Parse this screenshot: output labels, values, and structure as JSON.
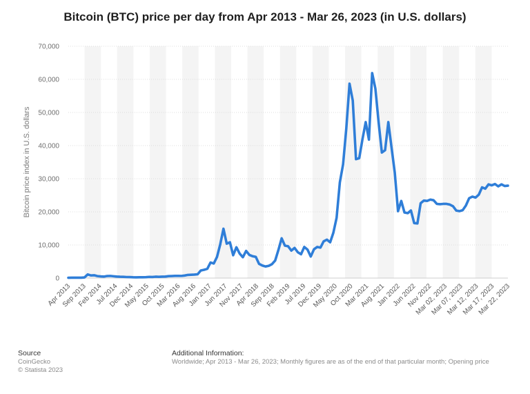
{
  "chart_data": {
    "type": "line",
    "title": "Bitcoin (BTC) price per day from Apr 2013 - Mar 26, 2023 (in U.S. dollars)",
    "xlabel": "",
    "ylabel": "Bitcoin price index in U.S. dollars",
    "ylim": [
      0,
      70000
    ],
    "yticks": [
      0,
      10000,
      20000,
      30000,
      40000,
      50000,
      60000,
      70000
    ],
    "ytick_labels": [
      "0",
      "10,000",
      "20,000",
      "30,000",
      "40,000",
      "50,000",
      "60,000",
      "70,000"
    ],
    "grid": true,
    "x_tick_labels": [
      "Apr 2013",
      "Sep 2013",
      "Feb 2014",
      "Jul 2014",
      "Dec 2014",
      "May 2015",
      "Oct 2015",
      "Mar 2016",
      "Aug 2016",
      "Jan 2017",
      "Jun 2017",
      "Nov 2017",
      "Apr 2018",
      "Sep 2018",
      "Feb 2019",
      "Jul 2019",
      "Dec 2019",
      "May 2020",
      "Oct 2020",
      "Mar 2021",
      "Aug 2021",
      "Jan 2022",
      "Jun 2022",
      "Nov 2022",
      "Mar 02, 2023",
      "Mar 07, 2023",
      "Mar 12, 2023",
      "Mar 17, 2023",
      "Mar 22, 2023"
    ],
    "color": "#2f7ed8",
    "values": [
      100,
      120,
      110,
      130,
      120,
      200,
      1100,
      800,
      850,
      600,
      500,
      450,
      620,
      650,
      550,
      450,
      400,
      380,
      310,
      300,
      240,
      230,
      240,
      250,
      270,
      360,
      320,
      420,
      380,
      420,
      450,
      580,
      620,
      660,
      680,
      650,
      770,
      960,
      1000,
      1050,
      1150,
      2300,
      2500,
      2800,
      4700,
      4400,
      6400,
      10200,
      14900,
      10400,
      10800,
      6900,
      9300,
      7400,
      6300,
      8200,
      7000,
      6600,
      6400,
      4300,
      3800,
      3500,
      3700,
      4200,
      5300,
      8500,
      12000,
      9800,
      9600,
      8300,
      9100,
      7800,
      7200,
      9400,
      8600,
      6500,
      8700,
      9400,
      9200,
      11100,
      11600,
      10800,
      13700,
      18200,
      28900,
      34300,
      45200,
      58700,
      53600,
      35900,
      36200,
      41900,
      47100,
      41800,
      61900,
      57200,
      47000,
      37900,
      38600,
      47100,
      39400,
      31800,
      20200,
      23300,
      19800,
      19600,
      20400,
      16600,
      16500,
      22600,
      23400,
      23300,
      23700,
      23500,
      22400,
      22300,
      22400,
      22400,
      22200,
      21700,
      20400,
      20200,
      20500,
      21900,
      24100,
      24600,
      24300,
      25200,
      27400,
      27000,
      28300,
      28000,
      28400,
      27700,
      28300,
      27800,
      27900
    ],
    "category_band_count": 27
  },
  "footer": {
    "source_title": "Source",
    "source_line1": "CoinGecko",
    "source_line2": "© Statista 2023",
    "info_title": "Additional Information:",
    "info_text": "Worldwide; Apr 2013 - Mar 26, 2023; Monthly figures are as of the end of that particular month; Opening price"
  }
}
